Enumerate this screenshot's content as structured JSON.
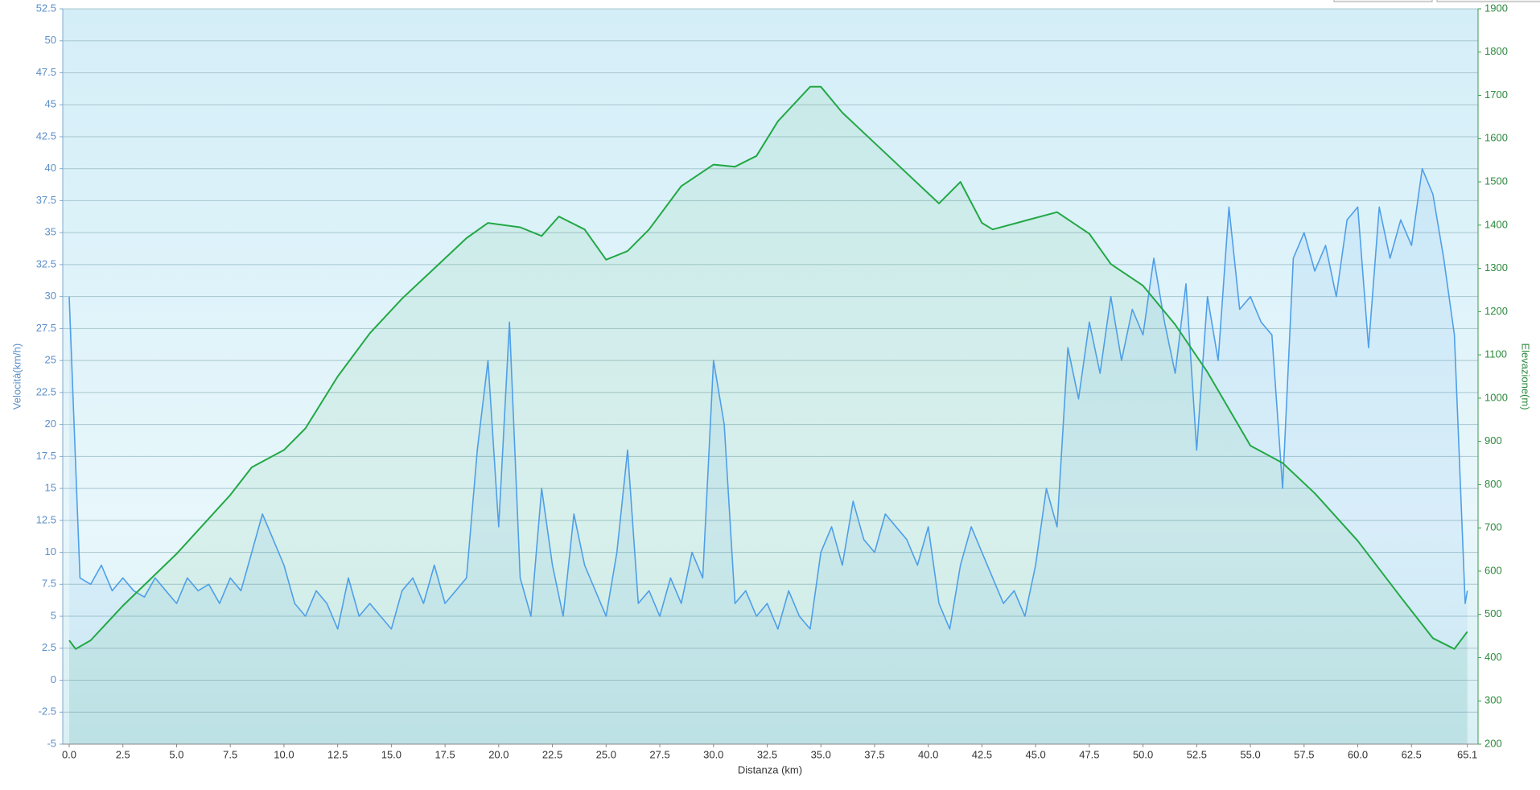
{
  "chart_data": {
    "type": "line",
    "x_label": "Distanza  (km)",
    "y_label": "Velocità(km/h)",
    "y2_label": "Elevazione(m)",
    "xlim": [
      -0.3,
      65.6
    ],
    "xticks": [
      {
        "value": 0,
        "label": "0.0"
      },
      2.5,
      {
        "value": 5,
        "label": "5.0"
      },
      7.5,
      {
        "value": 10,
        "label": "10.0"
      },
      12.5,
      {
        "value": 15,
        "label": "15.0"
      },
      17.5,
      {
        "value": 20,
        "label": "20.0"
      },
      22.5,
      {
        "value": 25,
        "label": "25.0"
      },
      27.5,
      {
        "value": 30,
        "label": "30.0"
      },
      32.5,
      {
        "value": 35,
        "label": "35.0"
      },
      37.5,
      {
        "value": 40,
        "label": "40.0"
      },
      42.5,
      {
        "value": 45,
        "label": "45.0"
      },
      47.5,
      {
        "value": 50,
        "label": "50.0"
      },
      52.5,
      {
        "value": 55,
        "label": "55.0"
      },
      57.5,
      {
        "value": 60,
        "label": "60.0"
      },
      62.5,
      65.1
    ],
    "ylim": [
      -5,
      52.5
    ],
    "yticks": [
      -5,
      -2.5,
      0,
      2.5,
      5,
      7.5,
      10,
      12.5,
      15,
      17.5,
      20,
      22.5,
      25,
      27.5,
      30,
      32.5,
      35,
      37.5,
      40,
      42.5,
      45,
      47.5,
      50,
      52.5
    ],
    "y2lim": [
      200,
      1900
    ],
    "y2ticks": [
      200,
      300,
      400,
      500,
      600,
      700,
      800,
      900,
      1000,
      1100,
      1200,
      1300,
      1400,
      1500,
      1600,
      1700,
      1800,
      1900
    ],
    "grid": true,
    "series": [
      {
        "name": "Velocità",
        "color": "#4f9fe8",
        "x": [
          0,
          0.5,
          1,
          1.5,
          2,
          2.5,
          3,
          3.5,
          4,
          4.5,
          5,
          5.5,
          6,
          6.5,
          7,
          7.5,
          8,
          8.5,
          9,
          9.5,
          10,
          10.5,
          11,
          11.5,
          12,
          12.5,
          13,
          13.5,
          14,
          14.5,
          15,
          15.5,
          16,
          16.5,
          17,
          17.5,
          18,
          18.5,
          19,
          19.5,
          20,
          20.5,
          21,
          21.5,
          22,
          22.5,
          23,
          23.5,
          24,
          24.5,
          25,
          25.5,
          26,
          26.5,
          27,
          27.5,
          28,
          28.5,
          29,
          29.5,
          30,
          30.5,
          31,
          31.5,
          32,
          32.5,
          33,
          33.5,
          34,
          34.5,
          35,
          35.5,
          36,
          36.5,
          37,
          37.5,
          38,
          38.5,
          39,
          39.5,
          40,
          40.5,
          41,
          41.5,
          42,
          42.5,
          43,
          43.5,
          44,
          44.5,
          45,
          45.5,
          46,
          46.5,
          47,
          47.5,
          48,
          48.5,
          49,
          49.5,
          50,
          50.5,
          51,
          51.5,
          52,
          52.5,
          53,
          53.5,
          54,
          54.5,
          55,
          55.5,
          56,
          56.5,
          57,
          57.5,
          58,
          58.5,
          59,
          59.5,
          60,
          60.5,
          61,
          61.5,
          62,
          62.5,
          63,
          63.5,
          64,
          64.5,
          65,
          65.1
        ],
        "values": [
          30,
          8,
          7.5,
          9,
          7,
          8,
          7,
          6.5,
          8,
          7,
          6,
          8,
          7,
          7.5,
          6,
          8,
          7,
          10,
          13,
          11,
          9,
          6,
          5,
          7,
          6,
          4,
          8,
          5,
          6,
          5,
          4,
          7,
          8,
          6,
          9,
          6,
          7,
          8,
          18,
          25,
          12,
          28,
          8,
          5,
          15,
          9,
          5,
          13,
          9,
          7,
          5,
          10,
          18,
          6,
          7,
          5,
          8,
          6,
          10,
          8,
          25,
          20,
          6,
          7,
          5,
          6,
          4,
          7,
          5,
          4,
          10,
          12,
          9,
          14,
          11,
          10,
          13,
          12,
          11,
          9,
          12,
          6,
          4,
          9,
          12,
          10,
          8,
          6,
          7,
          5,
          9,
          15,
          12,
          26,
          22,
          28,
          24,
          30,
          25,
          29,
          27,
          33,
          28,
          24,
          31,
          18,
          30,
          25,
          37,
          29,
          30,
          28,
          27,
          15,
          33,
          35,
          32,
          34,
          30,
          36,
          37,
          26,
          37,
          33,
          36,
          34,
          40,
          38,
          33,
          27,
          6,
          7
        ]
      },
      {
        "name": "Elevazione",
        "color": "#22a845",
        "axis": "y2",
        "x": [
          0,
          0.3,
          1,
          2.5,
          5,
          7.5,
          8.5,
          10,
          11,
          12.5,
          14,
          15.5,
          17,
          18.5,
          19.5,
          21,
          22,
          22.8,
          24,
          25,
          26,
          27,
          28.5,
          30,
          31,
          32,
          33,
          34.5,
          35,
          36,
          37.5,
          39,
          40.5,
          41.5,
          42.5,
          43,
          44.5,
          46,
          47.5,
          48.5,
          50,
          51.5,
          53,
          55,
          56.5,
          58,
          60,
          62,
          63.5,
          64.5,
          65.1
        ],
        "values": [
          440,
          420,
          440,
          520,
          640,
          776,
          840,
          880,
          930,
          1050,
          1150,
          1230,
          1300,
          1370,
          1405,
          1395,
          1375,
          1420,
          1390,
          1320,
          1340,
          1390,
          1490,
          1540,
          1535,
          1560,
          1640,
          1720,
          1720,
          1660,
          1590,
          1520,
          1450,
          1500,
          1405,
          1390,
          1410,
          1430,
          1380,
          1310,
          1260,
          1170,
          1060,
          890,
          850,
          780,
          670,
          540,
          445,
          420,
          460
        ]
      }
    ]
  }
}
